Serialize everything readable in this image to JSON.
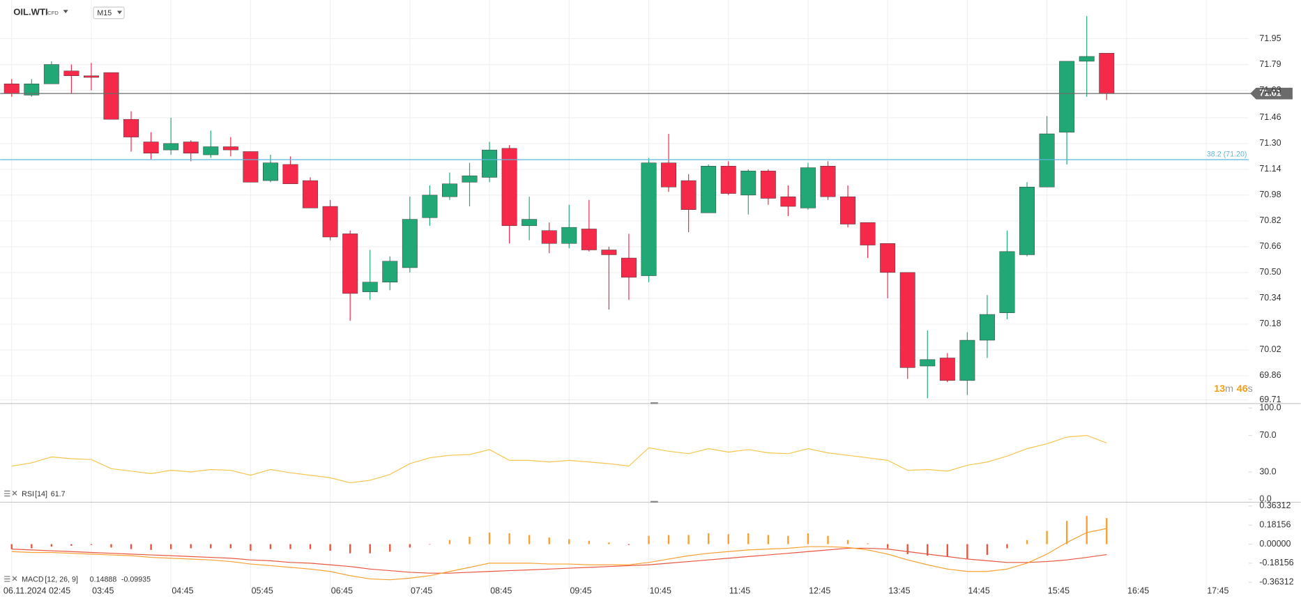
{
  "chart_data": [
    {
      "type": "candlestick",
      "title": "OIL.WTI",
      "subtitle": "CFD",
      "timeframe": "M15",
      "open": [
        71.67,
        71.6,
        71.67,
        71.75,
        71.72,
        71.74,
        71.45,
        71.31,
        71.26,
        71.31,
        71.23,
        71.28,
        71.25,
        71.07,
        71.17,
        71.07,
        70.91,
        70.74,
        70.38,
        70.44,
        70.53,
        70.84,
        70.97,
        71.06,
        71.09,
        71.27,
        70.79,
        70.76,
        70.68,
        70.77,
        70.64,
        70.59,
        70.48,
        71.18,
        71.07,
        70.87,
        71.16,
        70.98,
        71.13,
        70.97,
        70.9,
        71.16,
        70.97,
        70.81,
        70.68,
        70.5,
        69.92,
        69.97,
        69.83,
        70.08,
        70.25,
        70.61,
        71.03,
        71.37,
        71.81,
        71.86
      ],
      "high": [
        71.7,
        71.7,
        71.81,
        71.79,
        71.8,
        71.74,
        71.5,
        71.37,
        71.46,
        71.32,
        71.38,
        71.34,
        71.25,
        71.23,
        71.22,
        71.09,
        70.95,
        70.76,
        70.64,
        70.6,
        70.97,
        71.04,
        71.12,
        71.18,
        71.31,
        71.29,
        70.97,
        70.81,
        70.92,
        70.95,
        70.66,
        70.74,
        71.21,
        71.36,
        71.11,
        71.17,
        71.19,
        71.14,
        71.14,
        71.04,
        71.18,
        71.19,
        71.04,
        70.81,
        70.68,
        70.5,
        70.14,
        70.0,
        70.13,
        70.36,
        70.76,
        71.06,
        71.47,
        71.81,
        72.09,
        71.86
      ],
      "low": [
        71.59,
        71.59,
        71.67,
        71.61,
        71.63,
        71.45,
        71.25,
        71.2,
        71.23,
        71.19,
        71.21,
        71.22,
        71.06,
        71.06,
        71.05,
        70.9,
        70.7,
        70.2,
        70.33,
        70.39,
        70.5,
        70.79,
        70.95,
        70.91,
        71.06,
        70.68,
        70.7,
        70.62,
        70.65,
        70.63,
        70.27,
        70.33,
        70.44,
        71.0,
        70.75,
        70.87,
        70.98,
        70.86,
        70.92,
        70.85,
        70.89,
        70.95,
        70.78,
        70.59,
        70.34,
        69.84,
        69.72,
        69.82,
        69.74,
        69.97,
        70.21,
        70.6,
        71.03,
        71.17,
        71.59,
        71.57
      ],
      "close": [
        71.61,
        71.67,
        71.79,
        71.72,
        71.71,
        71.45,
        71.34,
        71.24,
        71.3,
        71.24,
        71.28,
        71.26,
        71.06,
        71.18,
        71.05,
        70.9,
        70.72,
        70.37,
        70.44,
        70.57,
        70.83,
        70.98,
        71.05,
        71.1,
        71.26,
        70.79,
        70.83,
        70.68,
        70.78,
        70.64,
        70.61,
        70.47,
        71.18,
        71.03,
        70.89,
        71.16,
        70.99,
        71.13,
        70.96,
        70.91,
        71.15,
        70.97,
        70.8,
        70.67,
        70.5,
        69.91,
        69.96,
        69.83,
        70.08,
        70.24,
        70.63,
        71.03,
        71.36,
        71.81,
        71.84,
        71.61
      ],
      "up_color": "#22a876",
      "down_color": "#f5294a",
      "xlim": [
        -0.58,
        62.13
      ],
      "xticks": [
        {
          "value": 0,
          "label": "06.11.2024 02:45"
        },
        {
          "value": 4,
          "label": "03:45"
        },
        {
          "value": 8,
          "label": "04:45"
        },
        {
          "value": 12,
          "label": "05:45"
        },
        {
          "value": 16,
          "label": "06:45"
        },
        {
          "value": 20,
          "label": "07:45"
        },
        {
          "value": 24,
          "label": "08:45"
        },
        {
          "value": 28,
          "label": "09:45"
        },
        {
          "value": 32,
          "label": "10:45"
        },
        {
          "value": 36,
          "label": "11:45"
        },
        {
          "value": 40,
          "label": "12:45"
        },
        {
          "value": 44,
          "label": "13:45"
        },
        {
          "value": 48,
          "label": "14:45"
        },
        {
          "value": 52,
          "label": "15:45"
        },
        {
          "value": 56,
          "label": "16:45"
        },
        {
          "value": 60,
          "label": "17:45"
        }
      ],
      "ylim": [
        69.69,
        72.19
      ],
      "yticks": [
        71.95,
        71.79,
        71.63,
        71.46,
        {
          "value": 71.3,
          "label": "71.30"
        },
        71.14,
        70.98,
        70.82,
        70.66,
        {
          "value": 70.5,
          "label": "70.50"
        },
        70.34,
        70.18,
        70.02,
        69.86,
        69.71
      ],
      "grid": true,
      "last_price": 71.61,
      "last_price_color": "#6b6b6b",
      "fib_level": {
        "value": 71.2,
        "label": "38.2 (71.20)"
      },
      "fib_color": "#5bb8de",
      "countdown": {
        "minutes": 13,
        "minutes_unit": "m",
        "seconds": 46,
        "seconds_unit": "s"
      },
      "countdown_color": "#f39c12"
    },
    {
      "type": "line",
      "title": "RSI",
      "params": "[14]",
      "color": "#f6c54f",
      "values": [
        36.4,
        40.0,
        46.4,
        44.5,
        43.6,
        33.6,
        30.9,
        28.2,
        31.8,
        30.0,
        32.7,
        31.8,
        26.4,
        32.7,
        29.1,
        26.4,
        23.6,
        18.2,
        20.9,
        27.3,
        39.1,
        45.5,
        48.2,
        49.1,
        54.5,
        42.7,
        42.7,
        40.9,
        42.7,
        40.9,
        39.1,
        36.4,
        56.4,
        52.7,
        50.0,
        55.5,
        51.8,
        54.5,
        50.9,
        50.0,
        55.5,
        50.9,
        48.2,
        45.5,
        42.7,
        31.8,
        32.7,
        30.9,
        37.3,
        40.9,
        47.3,
        55.5,
        60.9,
        68.2,
        70.0,
        61.7
      ],
      "ylim": [
        -2.7,
        104.5
      ],
      "yticks": [
        {
          "value": 100,
          "label": "100.0"
        },
        {
          "value": 70,
          "label": "70.0"
        },
        {
          "value": 30,
          "label": "30.0"
        },
        {
          "value": 0,
          "label": "0.0"
        }
      ],
      "grid": false
    },
    {
      "type": "macd",
      "title": "MACD",
      "params": "[12, 26, 9]",
      "macd": [
        -0.071,
        -0.079,
        -0.079,
        -0.087,
        -0.095,
        -0.103,
        -0.11,
        -0.126,
        -0.134,
        -0.142,
        -0.15,
        -0.166,
        -0.189,
        -0.205,
        -0.221,
        -0.237,
        -0.26,
        -0.3,
        -0.331,
        -0.339,
        -0.324,
        -0.3,
        -0.26,
        -0.221,
        -0.181,
        -0.181,
        -0.181,
        -0.189,
        -0.189,
        -0.197,
        -0.197,
        -0.197,
        -0.174,
        -0.142,
        -0.11,
        -0.087,
        -0.071,
        -0.055,
        -0.047,
        -0.039,
        -0.024,
        -0.024,
        -0.032,
        -0.055,
        -0.095,
        -0.15,
        -0.197,
        -0.237,
        -0.26,
        -0.26,
        -0.237,
        -0.181,
        -0.095,
        0.016,
        0.11,
        0.14888
      ],
      "signal": [
        -0.047,
        -0.055,
        -0.063,
        -0.071,
        -0.079,
        -0.087,
        -0.095,
        -0.103,
        -0.11,
        -0.118,
        -0.126,
        -0.134,
        -0.15,
        -0.158,
        -0.174,
        -0.181,
        -0.197,
        -0.213,
        -0.237,
        -0.252,
        -0.268,
        -0.276,
        -0.276,
        -0.268,
        -0.26,
        -0.252,
        -0.245,
        -0.237,
        -0.229,
        -0.221,
        -0.213,
        -0.205,
        -0.197,
        -0.181,
        -0.166,
        -0.15,
        -0.134,
        -0.118,
        -0.103,
        -0.087,
        -0.071,
        -0.055,
        -0.039,
        -0.039,
        -0.047,
        -0.071,
        -0.095,
        -0.118,
        -0.142,
        -0.158,
        -0.174,
        -0.174,
        -0.166,
        -0.15,
        -0.126,
        -0.09935
      ],
      "histogram": [
        -0.047,
        -0.039,
        -0.024,
        -0.016,
        -0.008,
        -0.032,
        -0.047,
        -0.055,
        -0.047,
        -0.039,
        -0.039,
        -0.039,
        -0.063,
        -0.047,
        -0.047,
        -0.047,
        -0.063,
        -0.087,
        -0.087,
        -0.071,
        -0.032,
        -0.004,
        0.039,
        0.071,
        0.11,
        0.103,
        0.087,
        0.063,
        0.047,
        0.032,
        0.016,
        -0.008,
        0.079,
        0.087,
        0.087,
        0.103,
        0.095,
        0.103,
        0.087,
        0.079,
        0.103,
        0.079,
        0.039,
        0.008,
        -0.039,
        -0.095,
        -0.11,
        -0.118,
        -0.142,
        -0.103,
        -0.039,
        0.039,
        0.126,
        0.221,
        0.268,
        0.24823
      ],
      "macd_color": "#f7a030",
      "signal_color": "#e8553e",
      "up_color": "#f7a030",
      "down_color": "#e8553e",
      "ylim": [
        -0.426,
        0.395
      ],
      "yticks": [
        0.36312,
        0.18156,
        {
          "value": 0,
          "label": "0.00000"
        },
        -0.18156,
        -0.36312
      ],
      "grid": false
    }
  ]
}
